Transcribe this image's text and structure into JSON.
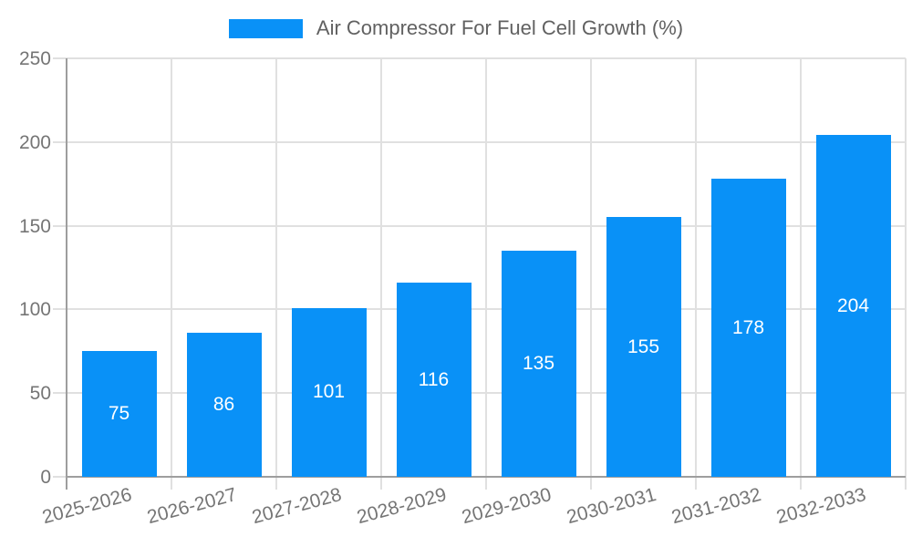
{
  "legend": {
    "label": "Air Compressor For Fuel Cell Growth (%)"
  },
  "chart_data": {
    "type": "bar",
    "title": "Air Compressor For Fuel Cell Growth (%)",
    "categories": [
      "2025-2026",
      "2026-2027",
      "2027-2028",
      "2028-2029",
      "2029-2030",
      "2030-2031",
      "2031-2032",
      "2032-2033"
    ],
    "values": [
      75,
      86,
      101,
      116,
      135,
      155,
      178,
      204
    ],
    "xlabel": "",
    "ylabel": "",
    "ylim": [
      0,
      250
    ],
    "yticks": [
      0,
      50,
      100,
      150,
      200,
      250
    ],
    "grid": true,
    "legend_position": "top",
    "colors": {
      "bar": "#0991F7",
      "value_label": "#FFFFFF",
      "axis_text": "#757575",
      "legend_text": "#616161",
      "grid": "#E0E0E0",
      "axis_line": "#9E9E9E",
      "background": "#FFFFFF"
    }
  }
}
